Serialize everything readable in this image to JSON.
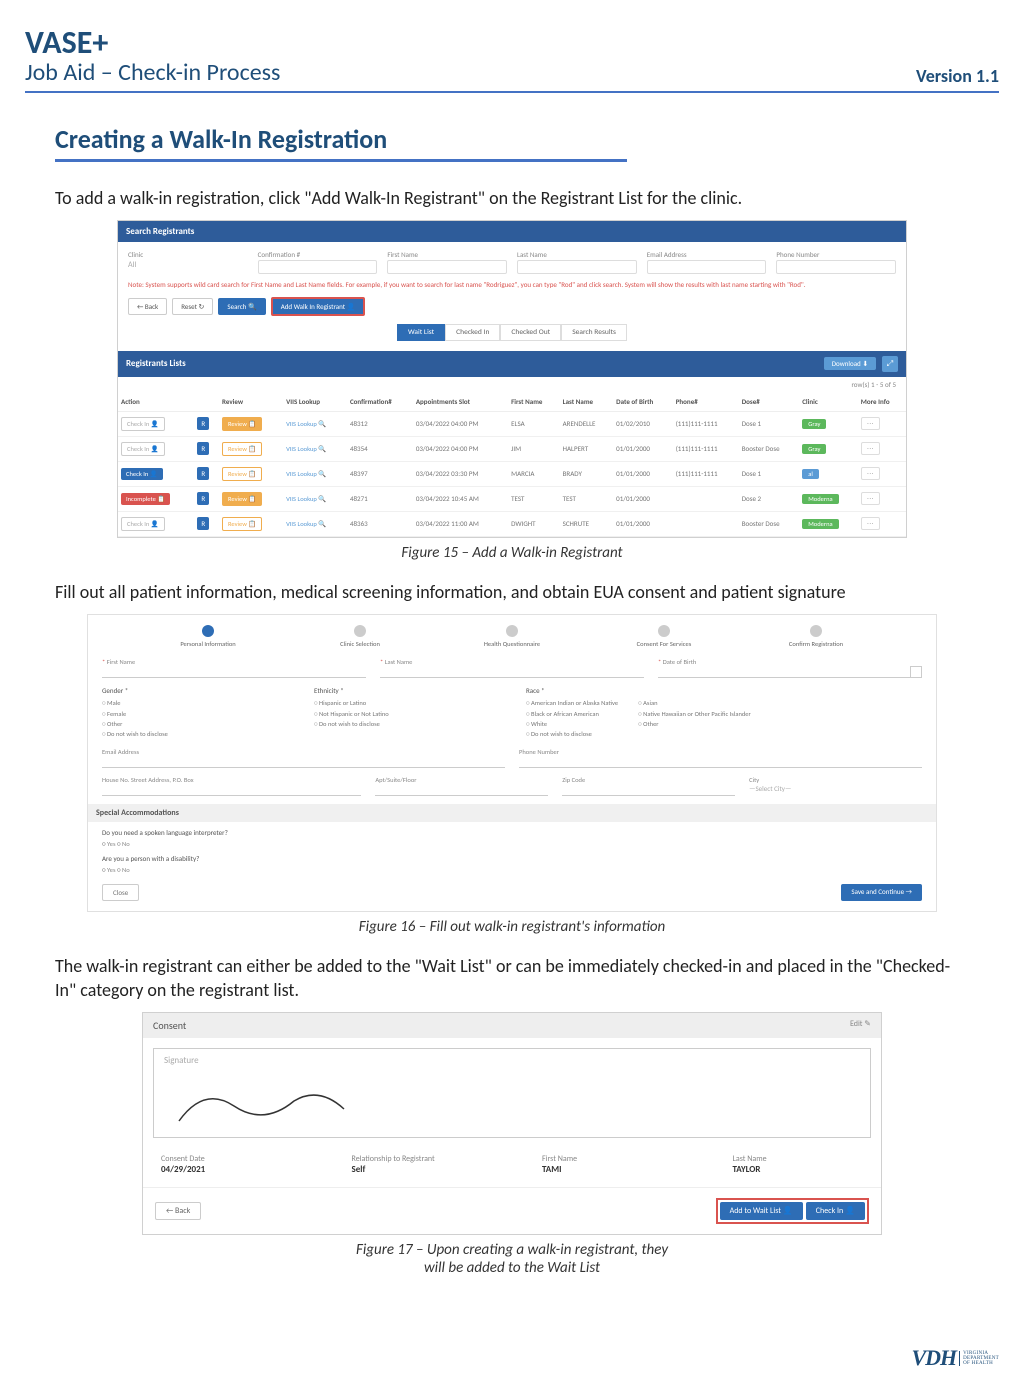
{
  "header": {
    "brand": "VASE+",
    "subtitle": "Job Aid – Check-in Process",
    "version": "Version 1.1"
  },
  "section_title": "Creating a Walk-In Registration",
  "para1": "To add a walk-in registration, click \"Add Walk-In Registrant\" on the Registrant List for the clinic.",
  "fig15": {
    "caption": "Figure 15 – Add a Walk-in Registrant",
    "panel_title": "Search Registrants",
    "search": {
      "clinic_lbl": "Clinic",
      "clinic_val": "All",
      "conf_lbl": "Confirmation #",
      "fn_lbl": "First Name",
      "ln_lbl": "Last Name",
      "email_lbl": "Email Address",
      "phone_lbl": "Phone Number",
      "note": "Note: System supports wild card search for First Name and Last Name fields. For example, if you want to search for last name \"Rodriguez\", you can type \"Rod\" and click search. System will show the results with last name starting with \"Rod\".",
      "back": "← Back",
      "reset": "Reset ↻",
      "search_btn": "Search 🔍",
      "add": "Add Walk In Registrant 👤"
    },
    "tabs": [
      "Wait List",
      "Checked In",
      "Checked Out",
      "Search Results"
    ],
    "list_title": "Registrants Lists",
    "download": "Download ⬇",
    "count": "row(s) 1 - 5 of 5",
    "cols": [
      "Action",
      "",
      "Review",
      "VIIS Lookup",
      "Confirmation#",
      "Appointments Slot",
      "First Name",
      "Last Name",
      "Date of Birth",
      "Phone#",
      "Dose#",
      "Clinic",
      "More Info"
    ],
    "rows": [
      {
        "action": "Check In 👤",
        "action_cls": "dis",
        "r": "R",
        "rev": "Review 📋",
        "rev_cls": "fill",
        "vis": "VIIS Lookup 🔍",
        "conf": "48312",
        "slot": "03/04/2022 04:00 PM",
        "fn": "ELSA",
        "ln": "ARENDELLE",
        "dob": "01/02/2010",
        "ph": "(111)111-1111",
        "dose": "Dose 1",
        "clinic": "Gray",
        "clinic_cls": ""
      },
      {
        "action": "Check In 👤",
        "action_cls": "dis",
        "r": "R",
        "rev": "Review 📋",
        "rev_cls": "",
        "vis": "VIIS Lookup 🔍",
        "conf": "48354",
        "slot": "03/04/2022 04:00 PM",
        "fn": "JIM",
        "ln": "HALPERT",
        "dob": "01/01/2000",
        "ph": "(111)111-1111",
        "dose": "Booster Dose",
        "clinic": "Gray",
        "clinic_cls": ""
      },
      {
        "action": "Check In 👤",
        "action_cls": "",
        "r": "R",
        "rev": "Review 📋",
        "rev_cls": "",
        "vis": "VIIS Lookup 🔍",
        "conf": "48397",
        "slot": "03/04/2022 03:30 PM",
        "fn": "MARCIA",
        "ln": "BRADY",
        "dob": "01/01/2000",
        "ph": "(111)111-1111",
        "dose": "Dose 1",
        "clinic": "al",
        "clinic_cls": "blue"
      },
      {
        "action": "Incomplete 📋",
        "action_cls": "red",
        "r": "R",
        "rev": "Review 📋",
        "rev_cls": "fill",
        "vis": "VIIS Lookup 🔍",
        "conf": "48271",
        "slot": "03/04/2022 10:45 AM",
        "fn": "TEST",
        "ln": "TEST",
        "dob": "01/01/2000",
        "ph": "",
        "dose": "Dose 2",
        "clinic": "Moderna",
        "clinic_cls": ""
      },
      {
        "action": "Check In 👤",
        "action_cls": "dis",
        "r": "R",
        "rev": "Review 📋",
        "rev_cls": "",
        "vis": "VIIS Lookup 🔍",
        "conf": "48363",
        "slot": "03/04/2022 11:00 AM",
        "fn": "DWIGHT",
        "ln": "SCHRUTE",
        "dob": "01/01/2000",
        "ph": "",
        "dose": "Booster Dose",
        "clinic": "Moderna",
        "clinic_cls": ""
      }
    ]
  },
  "para2": "Fill out all patient information, medical screening information, and obtain EUA consent and patient signature",
  "fig16": {
    "caption": "Figure 16 – Fill out walk-in registrant's information",
    "steps": [
      "Personal Information",
      "Clinic Selection",
      "Health Questionnaire",
      "Consent For Services",
      "Confirm Registration"
    ],
    "fn": "First Name",
    "ln": "Last Name",
    "dob": "Date of Birth",
    "gender_lbl": "Gender *",
    "gender": [
      "Male",
      "Female",
      "Other",
      "Do not wish to disclose"
    ],
    "eth_lbl": "Ethnicity *",
    "eth": [
      "Hispanic or Latino",
      "Not Hispanic or Not Latino",
      "Do not wish to disclose"
    ],
    "race_lbl": "Race *",
    "race1": [
      "American Indian or Alaska Native",
      "Black or African American",
      "White",
      "Do not wish to disclose"
    ],
    "race2": [
      "Asian",
      "Native Hawaiian or Other Pacific Islander",
      "Other"
    ],
    "email": "Email Address",
    "phone": "Phone Number",
    "addr": "House No. Street Address, P.O. Box",
    "apt": "Apt/Suite/Floor",
    "zip": "Zip Code",
    "city_lbl": "City",
    "city": "—Select City—",
    "spec": "Special Accommodations",
    "q1": "Do you need a spoken language interpreter?",
    "q2": "Are you a person with a disability?",
    "yn": "○ Yes   ○ No",
    "close": "Close",
    "save": "Save and Continue →"
  },
  "para3": "The walk-in registrant can either be added to the \"Wait List\" or can be immediately checked-in and placed in the \"Checked-In\" category on the registrant list.",
  "fig17": {
    "caption_l1": "Figure 17 – Upon creating a walk-in registrant, they",
    "caption_l2": "will be added to the Wait List",
    "hdr": "Consent",
    "edit": "Edit ✎",
    "sig": "Signature",
    "info": [
      {
        "lbl": "Consent Date",
        "val": "04/29/2021"
      },
      {
        "lbl": "Relationship to Registrant",
        "val": "Self"
      },
      {
        "lbl": "First Name",
        "val": "TAMI"
      },
      {
        "lbl": "Last Name",
        "val": "TAYLOR"
      }
    ],
    "back": "← Back",
    "wait": "Add to Wait List 👤",
    "checkin": "Check In 👤"
  },
  "footer": {
    "vdh": "VDH",
    "dept": "VIRGINIA\nDEPARTMENT\nOF HEALTH"
  }
}
